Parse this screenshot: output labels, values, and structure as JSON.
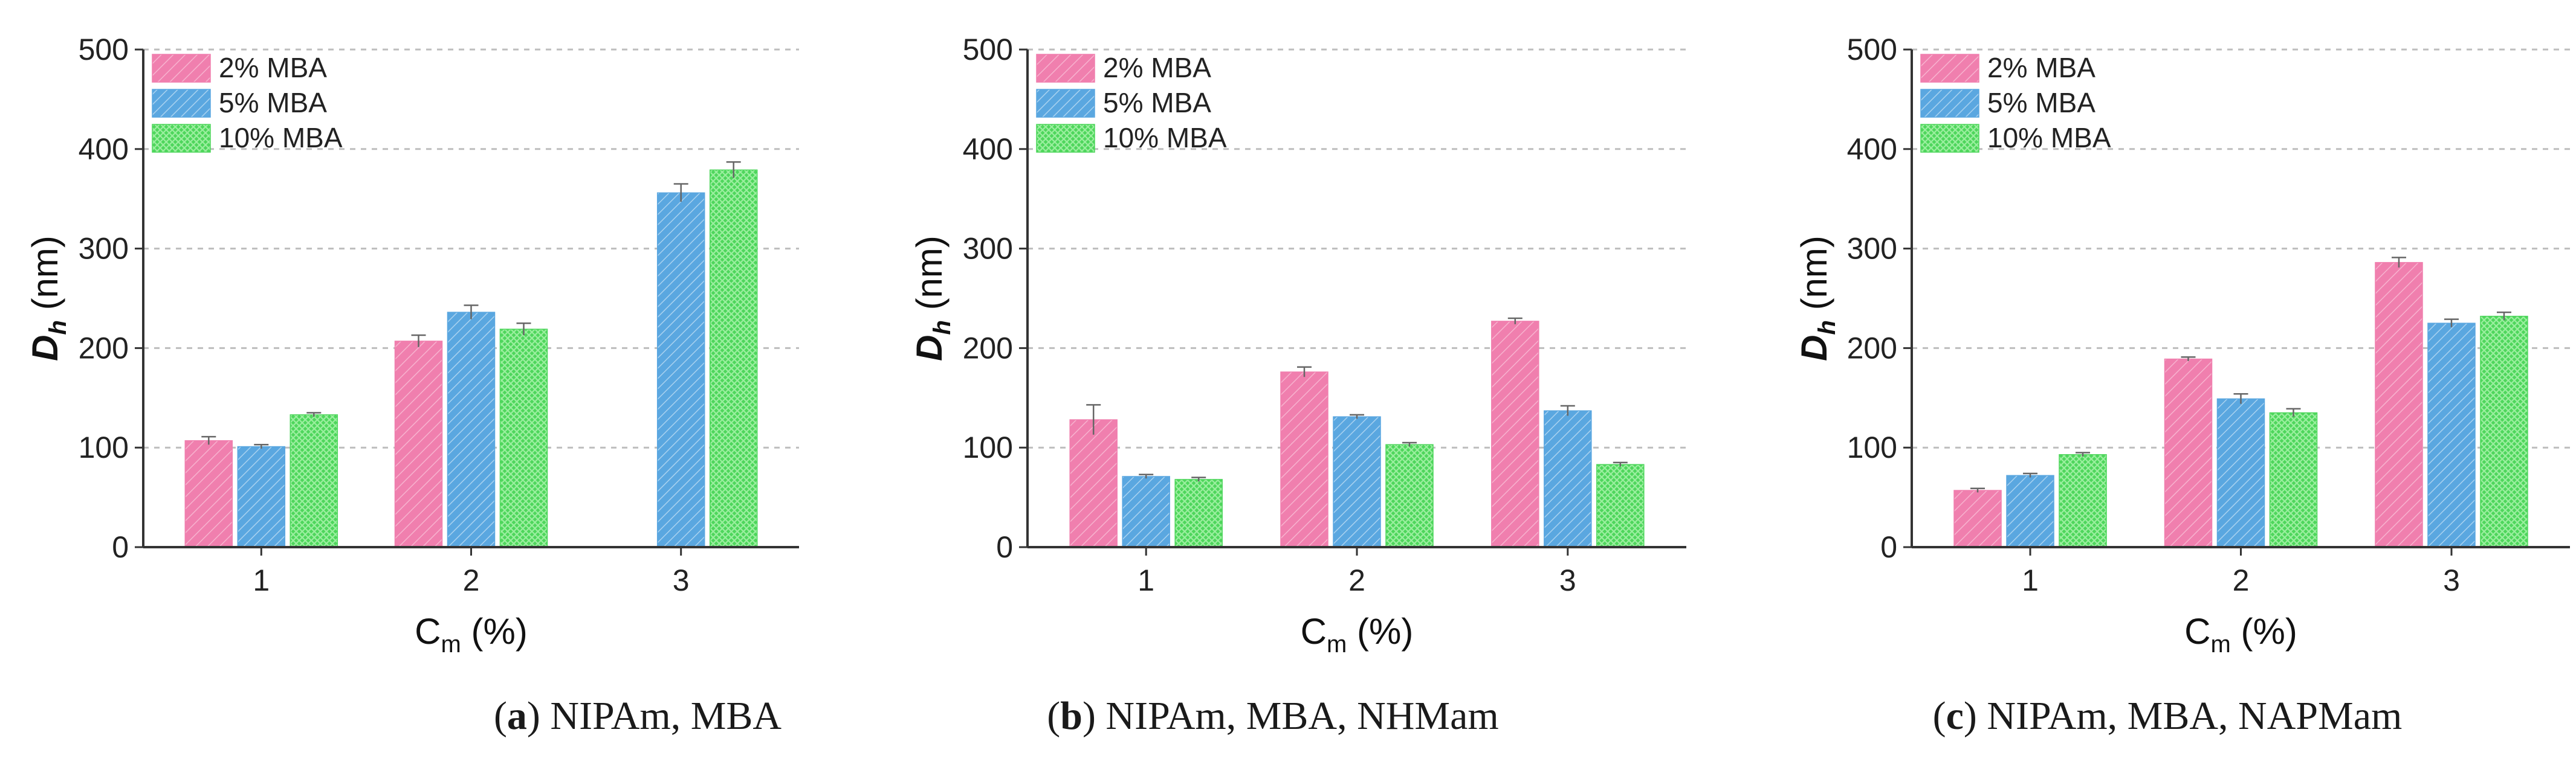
{
  "colors": {
    "s2": "#f07fae",
    "s5": "#5aa7e0",
    "s10": "#4ed65c",
    "axis": "#333333",
    "grid": "#bdbdbd",
    "errorbar": "#666666"
  },
  "chart_data": [
    {
      "type": "bar",
      "panel": "a",
      "caption_letter": "a",
      "caption_rest": ") NIPAm, MBA",
      "ylabel": "Dh (nm)",
      "xlabel": "Cm (%)",
      "ylim": [
        0,
        500
      ],
      "yticks": [
        "0",
        "100",
        "200",
        "300",
        "400",
        "500"
      ],
      "categories": [
        "1",
        "2",
        "3"
      ],
      "legend_position": "top-left",
      "series": [
        {
          "name": "2% MBA",
          "values": [
            107,
            207,
            null
          ],
          "errors": [
            4,
            6,
            null
          ]
        },
        {
          "name": "5% MBA",
          "values": [
            101,
            236,
            356
          ],
          "errors": [
            2,
            7,
            9
          ]
        },
        {
          "name": "10% MBA",
          "values": [
            133,
            219,
            379
          ],
          "errors": [
            2,
            6,
            8
          ]
        }
      ]
    },
    {
      "type": "bar",
      "panel": "b",
      "caption_letter": "b",
      "caption_rest": ") NIPAm, MBA, NHMam",
      "ylabel": "Dh (nm)",
      "xlabel": "Cm (%)",
      "ylim": [
        0,
        500
      ],
      "yticks": [
        "0",
        "100",
        "200",
        "300",
        "400",
        "500"
      ],
      "categories": [
        "1",
        "2",
        "3"
      ],
      "legend_position": "top-left",
      "series": [
        {
          "name": "2% MBA",
          "values": [
            128,
            176,
            227
          ],
          "errors": [
            15,
            5,
            3
          ]
        },
        {
          "name": "5% MBA",
          "values": [
            71,
            131,
            137
          ],
          "errors": [
            2,
            2,
            5
          ]
        },
        {
          "name": "10% MBA",
          "values": [
            68,
            103,
            83
          ],
          "errors": [
            2,
            2,
            2
          ]
        }
      ]
    },
    {
      "type": "bar",
      "panel": "c",
      "caption_letter": "c",
      "caption_rest": ") NIPAm, MBA, NAPMam",
      "ylabel": "Dh (nm)",
      "xlabel": "Cm (%)",
      "ylim": [
        0,
        500
      ],
      "yticks": [
        "0",
        "100",
        "200",
        "300",
        "400",
        "500"
      ],
      "categories": [
        "1",
        "2",
        "3"
      ],
      "legend_position": "top-left",
      "series": [
        {
          "name": "2% MBA",
          "values": [
            57,
            189,
            286
          ],
          "errors": [
            2,
            2,
            5
          ]
        },
        {
          "name": "5% MBA",
          "values": [
            72,
            149,
            225
          ],
          "errors": [
            2,
            5,
            4
          ]
        },
        {
          "name": "10% MBA",
          "values": [
            93,
            135,
            232
          ],
          "errors": [
            2,
            4,
            4
          ]
        }
      ]
    }
  ]
}
